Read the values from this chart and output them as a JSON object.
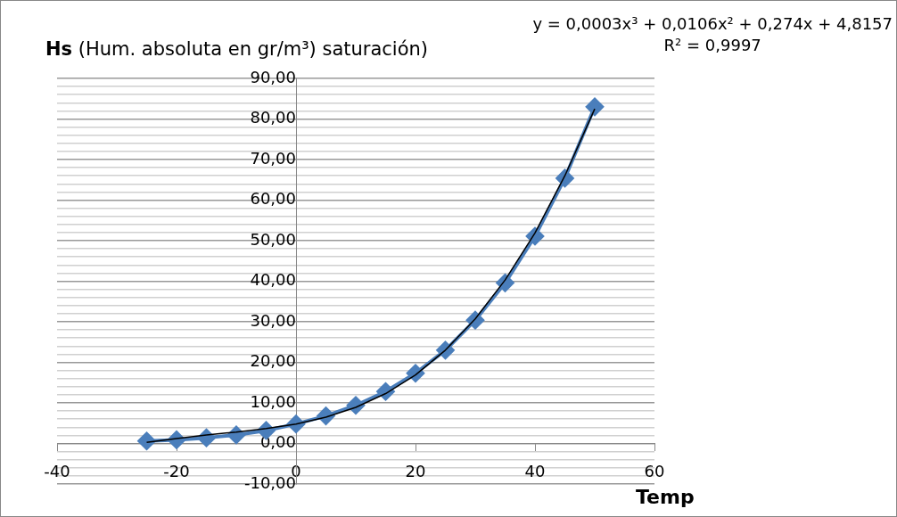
{
  "chart_data": {
    "type": "line",
    "title": "Hs (Hum. absoluta en gr/m³) saturación)",
    "xlabel": "Temp",
    "annotations": [
      "y = 0,0003x³ + 0,0106x² + 0,274x + 4,8157",
      "R² = 0,9997"
    ],
    "x": [
      -25,
      -20,
      -15,
      -10,
      -5,
      0,
      5,
      10,
      15,
      20,
      25,
      30,
      35,
      40,
      45,
      50
    ],
    "series": [
      {
        "color": "#4a7ebb",
        "values": [
          0.6,
          0.9,
          1.4,
          2.1,
          3.2,
          4.8,
          6.8,
          9.4,
          12.8,
          17.3,
          23.0,
          30.4,
          39.6,
          51.1,
          65.4,
          83.0
        ]
      },
      {
        "type": "line",
        "color": "#000000",
        "marker": "none",
        "x": [
          -25,
          -20,
          -15,
          -10,
          -5,
          0,
          5,
          10,
          15,
          20,
          25,
          30,
          35,
          40,
          45,
          50
        ],
        "values": [
          0.3,
          1.2,
          2.1,
          2.8,
          3.7,
          4.8,
          6.5,
          8.9,
          12.3,
          16.9,
          23.0,
          30.7,
          40.3,
          51.9,
          66.0,
          82.5
        ]
      }
    ],
    "xlim": [
      -40,
      60
    ],
    "xticks": [
      -40,
      -20,
      0,
      20,
      40,
      60
    ],
    "ylim": [
      -10,
      90
    ],
    "yticks": [
      {
        "value": -10,
        "label": "-10,00"
      },
      {
        "value": -8,
        "label": null
      },
      {
        "value": -6,
        "label": null
      },
      {
        "value": -4,
        "label": null
      },
      {
        "value": -2,
        "label": null
      },
      {
        "value": 0,
        "label": "0,00"
      },
      {
        "value": 2,
        "label": null
      },
      {
        "value": 4,
        "label": null
      },
      {
        "value": 6,
        "label": null
      },
      {
        "value": 8,
        "label": null
      },
      {
        "value": 10,
        "label": "10,00"
      },
      {
        "value": 12,
        "label": null
      },
      {
        "value": 14,
        "label": null
      },
      {
        "value": 16,
        "label": null
      },
      {
        "value": 18,
        "label": null
      },
      {
        "value": 20,
        "label": "20,00"
      },
      {
        "value": 22,
        "label": null
      },
      {
        "value": 24,
        "label": null
      },
      {
        "value": 26,
        "label": null
      },
      {
        "value": 28,
        "label": null
      },
      {
        "value": 30,
        "label": "30,00"
      },
      {
        "value": 32,
        "label": null
      },
      {
        "value": 34,
        "label": null
      },
      {
        "value": 36,
        "label": null
      },
      {
        "value": 38,
        "label": null
      },
      {
        "value": 40,
        "label": "40,00"
      },
      {
        "value": 42,
        "label": null
      },
      {
        "value": 44,
        "label": null
      },
      {
        "value": 46,
        "label": null
      },
      {
        "value": 48,
        "label": null
      },
      {
        "value": 50,
        "label": "50,00"
      },
      {
        "value": 52,
        "label": null
      },
      {
        "value": 54,
        "label": null
      },
      {
        "value": 56,
        "label": null
      },
      {
        "value": 58,
        "label": null
      },
      {
        "value": 60,
        "label": "60,00"
      },
      {
        "value": 62,
        "label": null
      },
      {
        "value": 64,
        "label": null
      },
      {
        "value": 66,
        "label": null
      },
      {
        "value": 68,
        "label": null
      },
      {
        "value": 70,
        "label": "70,00"
      },
      {
        "value": 72,
        "label": null
      },
      {
        "value": 74,
        "label": null
      },
      {
        "value": 76,
        "label": null
      },
      {
        "value": 78,
        "label": null
      },
      {
        "value": 80,
        "label": "80,00"
      },
      {
        "value": 82,
        "label": null
      },
      {
        "value": 84,
        "label": null
      },
      {
        "value": 86,
        "label": null
      },
      {
        "value": 88,
        "label": null
      },
      {
        "value": 90,
        "label": "90,00"
      }
    ],
    "grid": "y",
    "marker": "diamond",
    "line_style": "solid"
  }
}
